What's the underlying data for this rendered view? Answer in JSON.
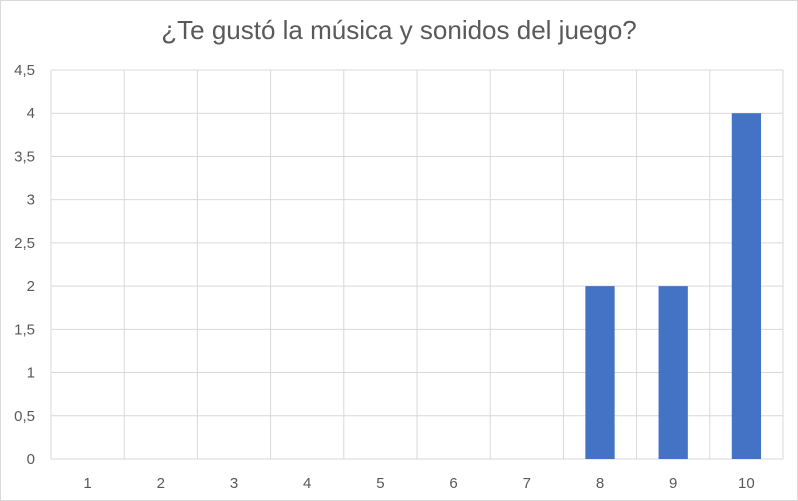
{
  "chart_data": {
    "type": "bar",
    "title": "¿Te gustó la música y sonidos del juego?",
    "xlabel": "",
    "ylabel": "",
    "categories": [
      "1",
      "2",
      "3",
      "4",
      "5",
      "6",
      "7",
      "8",
      "9",
      "10"
    ],
    "values": [
      0,
      0,
      0,
      0,
      0,
      0,
      0,
      2,
      2,
      4
    ],
    "ylim": [
      0,
      4.5
    ],
    "y_ticks": [
      "0",
      "0,5",
      "1",
      "1,5",
      "2",
      "2,5",
      "3",
      "3,5",
      "4",
      "4,5"
    ],
    "grid": true,
    "legend": "none",
    "colors": {
      "bar": "#4472c4",
      "grid": "#d9d9d9",
      "text": "#595959"
    }
  }
}
